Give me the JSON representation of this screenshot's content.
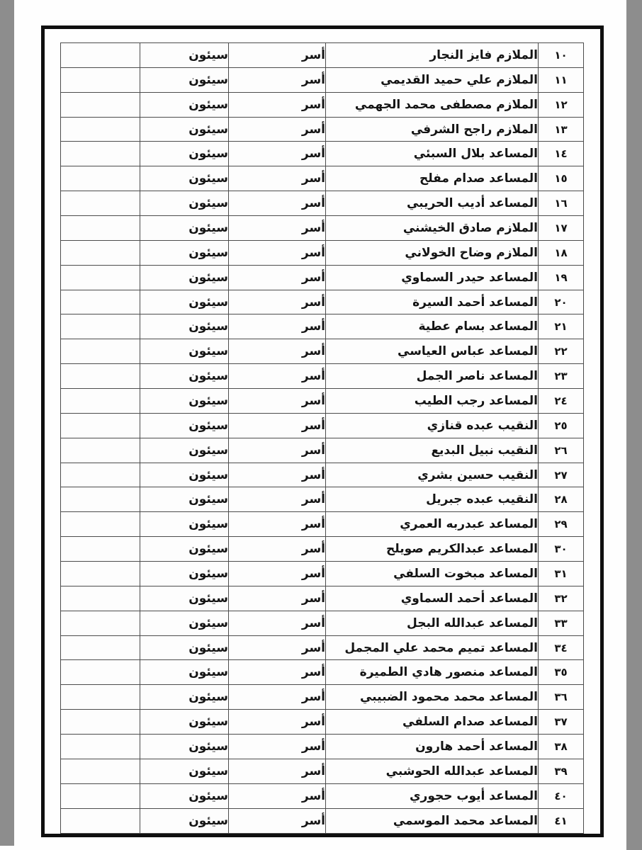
{
  "colors": {
    "page_background": "#fefefe",
    "scan_strip": "#8d8d8d",
    "frame_border": "#0f0f0f",
    "cell_border": "#4c4c4c",
    "text": "#141414"
  },
  "table": {
    "direction": "rtl",
    "visible_header": false,
    "rows": [
      {
        "serial": "١٠",
        "name": "الملازم فايز النجار",
        "status": "أسر",
        "location": "سيئون",
        "notes": ""
      },
      {
        "serial": "١١",
        "name": "الملازم علي حميد القديمي",
        "status": "أسر",
        "location": "سيئون",
        "notes": ""
      },
      {
        "serial": "١٢",
        "name": "الملازم مصطفى محمد الجهمي",
        "status": "أسر",
        "location": "سيئون",
        "notes": ""
      },
      {
        "serial": "١٣",
        "name": "الملازم راجح الشرفي",
        "status": "أسر",
        "location": "سيئون",
        "notes": ""
      },
      {
        "serial": "١٤",
        "name": "المساعد بلال السبئي",
        "status": "أسر",
        "location": "سيئون",
        "notes": ""
      },
      {
        "serial": "١٥",
        "name": "المساعد صدام مفلح",
        "status": "أسر",
        "location": "سيئون",
        "notes": ""
      },
      {
        "serial": "١٦",
        "name": "المساعد أديب الحريبي",
        "status": "أسر",
        "location": "سيئون",
        "notes": ""
      },
      {
        "serial": "١٧",
        "name": "الملازم صادق الخيشني",
        "status": "أسر",
        "location": "سيئون",
        "notes": ""
      },
      {
        "serial": "١٨",
        "name": "الملازم وضاح الخولاني",
        "status": "أسر",
        "location": "سيئون",
        "notes": ""
      },
      {
        "serial": "١٩",
        "name": "المساعد حيدر السماوي",
        "status": "أسر",
        "location": "سيئون",
        "notes": ""
      },
      {
        "serial": "٢٠",
        "name": "المساعد أحمد السيرة",
        "status": "أسر",
        "location": "سيئون",
        "notes": ""
      },
      {
        "serial": "٢١",
        "name": "المساعد بسام عطية",
        "status": "أسر",
        "location": "سيئون",
        "notes": ""
      },
      {
        "serial": "٢٢",
        "name": "المساعد عباس العياسي",
        "status": "أسر",
        "location": "سيئون",
        "notes": ""
      },
      {
        "serial": "٢٣",
        "name": "المساعد ناصر الجمل",
        "status": "أسر",
        "location": "سيئون",
        "notes": ""
      },
      {
        "serial": "٢٤",
        "name": "المساعد رجب الطيب",
        "status": "أسر",
        "location": "سيئون",
        "notes": ""
      },
      {
        "serial": "٢٥",
        "name": "النقيب عبده قنازي",
        "status": "أسر",
        "location": "سيئون",
        "notes": ""
      },
      {
        "serial": "٢٦",
        "name": "النقيب نبيل البديع",
        "status": "أسر",
        "location": "سيئون",
        "notes": ""
      },
      {
        "serial": "٢٧",
        "name": "النقيب حسين بشري",
        "status": "أسر",
        "location": "سيئون",
        "notes": ""
      },
      {
        "serial": "٢٨",
        "name": "النقيب عبده جبريل",
        "status": "أسر",
        "location": "سيئون",
        "notes": ""
      },
      {
        "serial": "٢٩",
        "name": "المساعد عبدربه العمري",
        "status": "أسر",
        "location": "سيئون",
        "notes": ""
      },
      {
        "serial": "٣٠",
        "name": "المساعد عبدالكريم صويلح",
        "status": "أسر",
        "location": "سيئون",
        "notes": ""
      },
      {
        "serial": "٣١",
        "name": "المساعد مبخوت السلفي",
        "status": "أسر",
        "location": "سيئون",
        "notes": ""
      },
      {
        "serial": "٣٢",
        "name": "المساعد أحمد السماوي",
        "status": "أسر",
        "location": "سيئون",
        "notes": ""
      },
      {
        "serial": "٣٣",
        "name": "المساعد عبدالله البجل",
        "status": "أسر",
        "location": "سيئون",
        "notes": ""
      },
      {
        "serial": "٣٤",
        "name": "المساعد تميم محمد علي المجمل",
        "status": "أسر",
        "location": "سيئون",
        "notes": ""
      },
      {
        "serial": "٣٥",
        "name": "المساعد منصور هادي الطميرة",
        "status": "أسر",
        "location": "سيئون",
        "notes": ""
      },
      {
        "serial": "٣٦",
        "name": "المساعد محمد محمود الضبيبي",
        "status": "أسر",
        "location": "سيئون",
        "notes": ""
      },
      {
        "serial": "٣٧",
        "name": "المساعد صدام السلفي",
        "status": "أسر",
        "location": "سيئون",
        "notes": ""
      },
      {
        "serial": "٣٨",
        "name": "المساعد أحمد هارون",
        "status": "أسر",
        "location": "سيئون",
        "notes": ""
      },
      {
        "serial": "٣٩",
        "name": "المساعد عبدالله الحوشبي",
        "status": "أسر",
        "location": "سيئون",
        "notes": ""
      },
      {
        "serial": "٤٠",
        "name": "المساعد أيوب حجوري",
        "status": "أسر",
        "location": "سيئون",
        "notes": ""
      },
      {
        "serial": "٤١",
        "name": "المساعد محمد الموسمي",
        "status": "أسر",
        "location": "سيئون",
        "notes": ""
      }
    ]
  }
}
